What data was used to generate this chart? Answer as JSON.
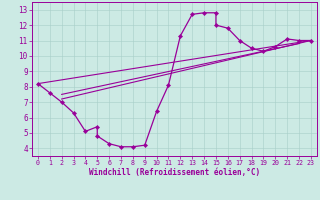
{
  "xlabel": "Windchill (Refroidissement éolien,°C)",
  "bg_color": "#cceae4",
  "line_color": "#990099",
  "marker_color": "#990099",
  "xlim": [
    -0.5,
    23.5
  ],
  "ylim": [
    3.5,
    13.5
  ],
  "xticks": [
    0,
    1,
    2,
    3,
    4,
    5,
    6,
    7,
    8,
    9,
    10,
    11,
    12,
    13,
    14,
    15,
    16,
    17,
    18,
    19,
    20,
    21,
    22,
    23
  ],
  "yticks": [
    4,
    5,
    6,
    7,
    8,
    9,
    10,
    11,
    12,
    13
  ],
  "curve1_x": [
    0,
    1,
    2,
    3,
    4,
    5,
    5,
    6,
    7,
    8,
    9,
    10,
    11,
    12,
    13,
    14,
    15,
    15,
    16,
    17,
    18,
    19,
    20,
    21,
    22,
    23
  ],
  "curve1_y": [
    8.2,
    7.6,
    7.0,
    6.3,
    5.1,
    5.4,
    4.8,
    4.3,
    4.1,
    4.1,
    4.2,
    6.4,
    8.1,
    11.3,
    12.7,
    12.8,
    12.8,
    12.0,
    11.8,
    11.0,
    10.5,
    10.3,
    10.6,
    11.1,
    11.0,
    11.0
  ],
  "line1_x": [
    0,
    23
  ],
  "line1_y": [
    8.2,
    11.0
  ],
  "line2_x": [
    2,
    23
  ],
  "line2_y": [
    7.2,
    11.0
  ],
  "line3_x": [
    2,
    22
  ],
  "line3_y": [
    7.5,
    10.8
  ]
}
